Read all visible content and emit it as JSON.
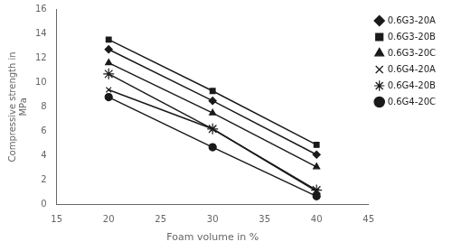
{
  "chart_data": {
    "type": "line",
    "x_label": "Foam volume in %",
    "y_label": "Compressive strength in\nMPa",
    "x": [
      20,
      30,
      40
    ],
    "series": [
      {
        "name": "0.6G3-20A",
        "values": [
          12.7,
          8.5,
          4.1
        ],
        "marker": "diamond",
        "color": "#1a1a1a"
      },
      {
        "name": "0.6G3-20B",
        "values": [
          13.5,
          9.3,
          4.9
        ],
        "marker": "square",
        "color": "#1a1a1a"
      },
      {
        "name": "0.6G3-20C",
        "values": [
          11.6,
          7.5,
          3.1
        ],
        "marker": "triangle",
        "color": "#1a1a1a"
      },
      {
        "name": "0.6G4-20A",
        "values": [
          9.4,
          6.2,
          1.1
        ],
        "marker": "x",
        "color": "#1a1a1a"
      },
      {
        "name": "0.6G4-20B",
        "values": [
          10.7,
          6.2,
          1.2
        ],
        "marker": "star",
        "color": "#1a1a1a"
      },
      {
        "name": "0.6G4-20C",
        "values": [
          8.8,
          4.7,
          0.7
        ],
        "marker": "circle",
        "color": "#1a1a1a"
      }
    ],
    "xlim": [
      15,
      45
    ],
    "ylim": [
      0,
      16
    ],
    "xticks": [
      15,
      20,
      25,
      30,
      35,
      40,
      45
    ],
    "yticks": [
      0,
      2,
      4,
      6,
      8,
      10,
      12,
      14,
      16
    ],
    "grid": false,
    "legend": "right"
  }
}
